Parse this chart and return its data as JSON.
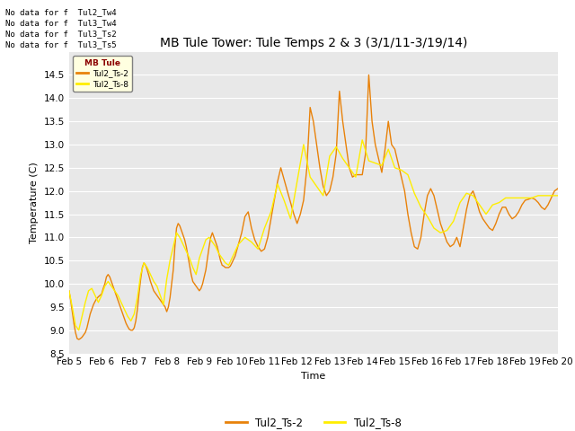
{
  "title": "MB Tule Tower: Tule Temps 2 & 3 (3/1/11-3/19/14)",
  "xlabel": "Time",
  "ylabel": "Temperature (C)",
  "ylim": [
    8.5,
    15.0
  ],
  "xlim": [
    5,
    20
  ],
  "bg_color": "#e8e8e8",
  "line1_color": "#E8820A",
  "line2_color": "#FFEE00",
  "legend_labels": [
    "Tul2_Ts-2",
    "Tul2_Ts-8"
  ],
  "xtick_labels": [
    "Feb 5",
    "Feb 6",
    "Feb 7",
    "Feb 8",
    "Feb 9",
    "Feb 10",
    "Feb 11",
    "Feb 12",
    "Feb 13",
    "Feb 14",
    "Feb 15",
    "Feb 16",
    "Feb 17",
    "Feb 18",
    "Feb 19",
    "Feb 20"
  ],
  "ytick_vals": [
    8.5,
    9.0,
    9.5,
    10.0,
    10.5,
    11.0,
    11.5,
    12.0,
    12.5,
    13.0,
    13.5,
    14.0,
    14.5
  ],
  "no_data_lines": [
    "No data for f  Tul2_Tw4",
    "No data for f  Tul3_Tw4",
    "No data for f  Tul3_Ts2",
    "No data for f  Tul3_Ts5"
  ],
  "legend_box_text": "MB Tule",
  "ts2_x": [
    5.0,
    5.05,
    5.1,
    5.15,
    5.2,
    5.25,
    5.3,
    5.35,
    5.4,
    5.45,
    5.5,
    5.55,
    5.6,
    5.65,
    5.7,
    5.75,
    5.8,
    5.85,
    5.9,
    5.95,
    6.0,
    6.05,
    6.1,
    6.15,
    6.2,
    6.25,
    6.3,
    6.35,
    6.4,
    6.45,
    6.5,
    6.55,
    6.6,
    6.65,
    6.7,
    6.75,
    6.8,
    6.85,
    6.9,
    6.95,
    7.0,
    7.05,
    7.1,
    7.15,
    7.2,
    7.25,
    7.3,
    7.35,
    7.4,
    7.45,
    7.5,
    7.55,
    7.6,
    7.65,
    7.7,
    7.75,
    7.8,
    7.85,
    7.9,
    7.95,
    8.0,
    8.05,
    8.1,
    8.15,
    8.2,
    8.25,
    8.3,
    8.35,
    8.4,
    8.45,
    8.5,
    8.55,
    8.6,
    8.65,
    8.7,
    8.75,
    8.8,
    8.85,
    8.9,
    8.95,
    9.0,
    9.05,
    9.1,
    9.15,
    9.2,
    9.25,
    9.3,
    9.35,
    9.4,
    9.45,
    9.5,
    9.55,
    9.6,
    9.65,
    9.7,
    9.75,
    9.8,
    9.85,
    9.9,
    9.95,
    10.0,
    10.1,
    10.2,
    10.3,
    10.4,
    10.5,
    10.6,
    10.7,
    10.8,
    10.9,
    11.0,
    11.1,
    11.2,
    11.3,
    11.4,
    11.5,
    11.6,
    11.7,
    11.8,
    11.9,
    12.0,
    12.1,
    12.2,
    12.3,
    12.4,
    12.5,
    12.6,
    12.7,
    12.8,
    12.9,
    13.0,
    13.1,
    13.2,
    13.3,
    13.4,
    13.5,
    13.6,
    13.7,
    13.8,
    13.9,
    14.0,
    14.1,
    14.2,
    14.3,
    14.4,
    14.5,
    14.6,
    14.7,
    14.8,
    14.9,
    15.0,
    15.1,
    15.2,
    15.3,
    15.4,
    15.5,
    15.6,
    15.7,
    15.8,
    15.9,
    16.0,
    16.1,
    16.2,
    16.3,
    16.4,
    16.5,
    16.6,
    16.7,
    16.8,
    16.9,
    17.0,
    17.1,
    17.2,
    17.3,
    17.4,
    17.5,
    17.6,
    17.7,
    17.8,
    17.9,
    18.0,
    18.1,
    18.2,
    18.3,
    18.4,
    18.5,
    18.6,
    18.7,
    18.8,
    18.9,
    19.0,
    19.1,
    19.2,
    19.3,
    19.4,
    19.5,
    19.6,
    19.7,
    19.8,
    19.9,
    20.0
  ],
  "ts2_y": [
    9.85,
    9.65,
    9.4,
    9.15,
    8.95,
    8.82,
    8.8,
    8.82,
    8.85,
    8.9,
    8.95,
    9.05,
    9.2,
    9.35,
    9.45,
    9.55,
    9.62,
    9.68,
    9.72,
    9.75,
    9.78,
    9.9,
    10.0,
    10.15,
    10.2,
    10.15,
    10.05,
    9.95,
    9.85,
    9.75,
    9.65,
    9.55,
    9.45,
    9.35,
    9.25,
    9.15,
    9.08,
    9.02,
    9.0,
    9.0,
    9.05,
    9.2,
    9.45,
    9.8,
    10.1,
    10.35,
    10.45,
    10.4,
    10.3,
    10.18,
    10.05,
    9.95,
    9.85,
    9.8,
    9.75,
    9.7,
    9.65,
    9.6,
    9.55,
    9.5,
    9.4,
    9.5,
    9.7,
    10.0,
    10.3,
    10.8,
    11.2,
    11.3,
    11.25,
    11.15,
    11.05,
    10.95,
    10.8,
    10.6,
    10.4,
    10.2,
    10.05,
    10.0,
    9.95,
    9.9,
    9.85,
    9.9,
    10.0,
    10.15,
    10.3,
    10.55,
    10.8,
    11.0,
    11.1,
    11.0,
    10.9,
    10.8,
    10.65,
    10.5,
    10.4,
    10.38,
    10.35,
    10.35,
    10.35,
    10.38,
    10.45,
    10.6,
    10.85,
    11.1,
    11.45,
    11.55,
    11.2,
    10.95,
    10.8,
    10.7,
    10.75,
    11.0,
    11.4,
    11.8,
    12.2,
    12.5,
    12.25,
    12.0,
    11.75,
    11.5,
    11.3,
    11.5,
    11.8,
    12.5,
    13.8,
    13.5,
    13.0,
    12.5,
    12.1,
    11.9,
    12.0,
    12.3,
    12.8,
    14.15,
    13.5,
    13.0,
    12.5,
    12.3,
    12.35,
    12.35,
    12.35,
    12.8,
    14.5,
    13.5,
    13.0,
    12.7,
    12.4,
    12.9,
    13.5,
    13.0,
    12.9,
    12.6,
    12.3,
    12.0,
    11.5,
    11.1,
    10.8,
    10.75,
    11.0,
    11.5,
    11.9,
    12.05,
    11.9,
    11.6,
    11.3,
    11.1,
    10.9,
    10.8,
    10.85,
    11.0,
    10.8,
    11.2,
    11.6,
    11.9,
    12.0,
    11.8,
    11.55,
    11.4,
    11.3,
    11.2,
    11.15,
    11.3,
    11.5,
    11.65,
    11.65,
    11.5,
    11.4,
    11.45,
    11.55,
    11.7,
    11.8,
    11.82,
    11.85,
    11.82,
    11.75,
    11.65,
    11.6,
    11.7,
    11.85,
    12.0,
    12.05
  ],
  "ts8_x": [
    5.0,
    5.1,
    5.2,
    5.3,
    5.4,
    5.5,
    5.6,
    5.7,
    5.8,
    5.9,
    6.0,
    6.1,
    6.2,
    6.3,
    6.4,
    6.5,
    6.6,
    6.7,
    6.8,
    6.9,
    7.0,
    7.1,
    7.2,
    7.3,
    7.4,
    7.5,
    7.6,
    7.7,
    7.8,
    7.9,
    8.0,
    8.1,
    8.2,
    8.3,
    8.4,
    8.5,
    8.6,
    8.7,
    8.8,
    8.9,
    9.0,
    9.1,
    9.2,
    9.3,
    9.4,
    9.5,
    9.6,
    9.7,
    9.8,
    9.9,
    10.0,
    10.2,
    10.4,
    10.6,
    10.8,
    11.0,
    11.2,
    11.4,
    11.6,
    11.8,
    12.0,
    12.2,
    12.4,
    12.6,
    12.8,
    13.0,
    13.2,
    13.4,
    13.6,
    13.8,
    14.0,
    14.2,
    14.4,
    14.6,
    14.8,
    15.0,
    15.2,
    15.4,
    15.6,
    15.8,
    16.0,
    16.2,
    16.4,
    16.6,
    16.8,
    17.0,
    17.2,
    17.4,
    17.6,
    17.8,
    18.0,
    18.2,
    18.4,
    18.6,
    18.8,
    19.0,
    19.2,
    19.4,
    19.6,
    19.8,
    20.0
  ],
  "ts8_y": [
    9.85,
    9.5,
    9.1,
    9.0,
    9.3,
    9.6,
    9.85,
    9.9,
    9.75,
    9.6,
    9.75,
    9.95,
    10.05,
    9.95,
    9.85,
    9.75,
    9.6,
    9.45,
    9.3,
    9.2,
    9.35,
    9.7,
    10.2,
    10.45,
    10.35,
    10.2,
    10.05,
    9.95,
    9.75,
    9.55,
    10.1,
    10.5,
    10.8,
    11.1,
    11.0,
    10.85,
    10.7,
    10.55,
    10.35,
    10.2,
    10.55,
    10.75,
    10.95,
    11.0,
    10.9,
    10.8,
    10.65,
    10.55,
    10.45,
    10.4,
    10.55,
    10.85,
    11.0,
    10.9,
    10.75,
    11.2,
    11.55,
    12.15,
    11.8,
    11.4,
    12.2,
    13.0,
    12.3,
    12.1,
    11.9,
    12.75,
    12.95,
    12.7,
    12.5,
    12.3,
    13.1,
    12.65,
    12.6,
    12.55,
    12.9,
    12.5,
    12.45,
    12.35,
    11.95,
    11.65,
    11.45,
    11.2,
    11.1,
    11.15,
    11.35,
    11.75,
    11.95,
    11.9,
    11.7,
    11.5,
    11.7,
    11.75,
    11.85,
    11.85,
    11.85,
    11.85,
    11.85,
    11.9,
    11.9,
    11.9,
    11.9
  ]
}
